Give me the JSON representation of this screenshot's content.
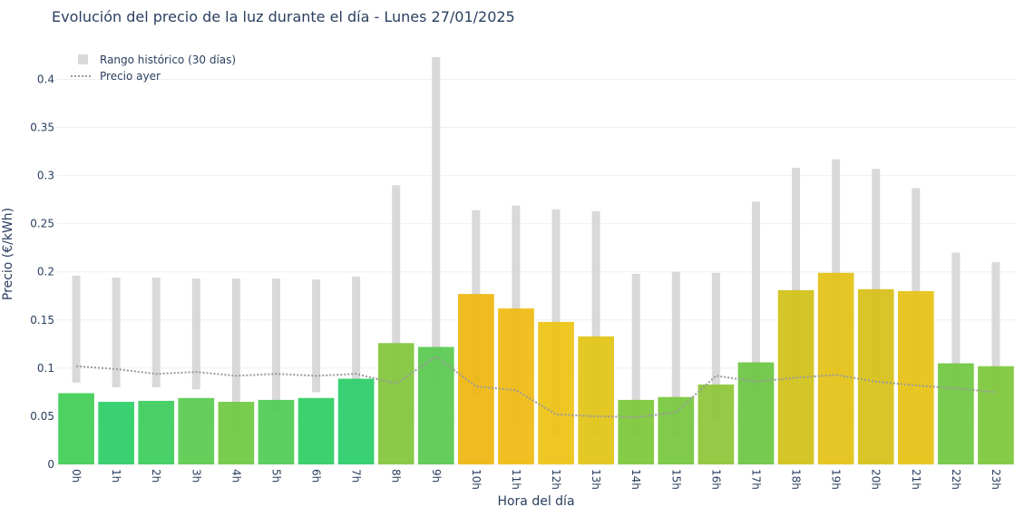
{
  "chart_data": {
    "type": "bar",
    "title": "Evolución del precio de la luz durante el día - Lunes 27/01/2025",
    "xlabel": "Hora del día",
    "ylabel": "Precio (€/kWh)",
    "ylim": [
      0,
      0.44
    ],
    "yticks": [
      "0",
      "0.05",
      "0.1",
      "0.15",
      "0.2",
      "0.25",
      "0.3",
      "0.35",
      "0.4"
    ],
    "ytick_values": [
      0,
      0.05,
      0.1,
      0.15,
      0.2,
      0.25,
      0.3,
      0.35,
      0.4
    ],
    "categories": [
      "0h",
      "1h",
      "2h",
      "3h",
      "4h",
      "5h",
      "6h",
      "7h",
      "8h",
      "9h",
      "10h",
      "11h",
      "12h",
      "13h",
      "14h",
      "15h",
      "16h",
      "17h",
      "18h",
      "19h",
      "20h",
      "21h",
      "22h",
      "23h"
    ],
    "values": [
      0.074,
      0.065,
      0.066,
      0.069,
      0.065,
      0.067,
      0.069,
      0.089,
      0.126,
      0.122,
      0.177,
      0.162,
      0.148,
      0.133,
      0.067,
      0.07,
      0.083,
      0.106,
      0.181,
      0.199,
      0.182,
      0.18,
      0.105,
      0.102
    ],
    "bar_colors": [
      "#46cf5a",
      "#31cf68",
      "#3fcf5f",
      "#5ecb52",
      "#73c945",
      "#52cd57",
      "#34cf66",
      "#2ecf6c",
      "#84c73e",
      "#5dca52",
      "#eeb714",
      "#f0bc16",
      "#eec419",
      "#e2c51a",
      "#7fc83e",
      "#79c841",
      "#90c63b",
      "#6fc747",
      "#d2c21c",
      "#e4c31a",
      "#d8c21c",
      "#e7c419",
      "#73c845",
      "#7fc83e"
    ],
    "range_min": [
      0.085,
      0.08,
      0.08,
      0.078,
      0.035,
      0.055,
      0.075,
      0.082,
      0.083,
      0.083,
      0.07,
      0.04,
      0.03,
      0.03,
      0.03,
      0.03,
      0.045,
      0.075,
      0.09,
      0.092,
      0.085,
      0.083,
      0.08,
      0.075
    ],
    "range_max": [
      0.196,
      0.194,
      0.194,
      0.193,
      0.193,
      0.193,
      0.192,
      0.195,
      0.29,
      0.423,
      0.264,
      0.269,
      0.265,
      0.263,
      0.198,
      0.2,
      0.199,
      0.273,
      0.308,
      0.317,
      0.307,
      0.287,
      0.22,
      0.21
    ],
    "yesterday": [
      0.102,
      0.099,
      0.094,
      0.096,
      0.092,
      0.094,
      0.092,
      0.094,
      0.084,
      0.112,
      0.081,
      0.077,
      0.052,
      0.05,
      0.049,
      0.054,
      0.092,
      0.086,
      0.09,
      0.093,
      0.086,
      0.082,
      0.079,
      0.075
    ],
    "legend": {
      "placement": "top-left",
      "items": [
        "Rango histórico (30 días)",
        "Precio ayer"
      ]
    },
    "grid": true,
    "colors": {
      "range": "#d9d9d9",
      "yesterday": "#9a9a9a",
      "text": "#2a3f5f",
      "grid": "#eef0f4"
    }
  }
}
